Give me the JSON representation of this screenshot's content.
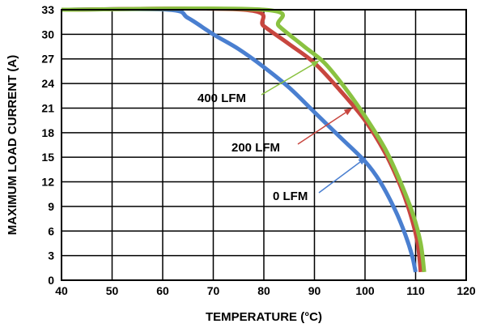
{
  "chart_data": {
    "type": "line",
    "title": "",
    "xlabel": "TEMPERATURE (°C)",
    "ylabel": "MAXIMUM LOAD CURRENT (A)",
    "xlim": [
      40,
      120
    ],
    "ylim": [
      0,
      33
    ],
    "xticks": [
      "40",
      "50",
      "60",
      "70",
      "80",
      "90",
      "100",
      "110",
      "120"
    ],
    "yticks": [
      "0",
      "3",
      "6",
      "9",
      "12",
      "15",
      "18",
      "21",
      "24",
      "27",
      "30",
      "33"
    ],
    "grid": true,
    "series": [
      {
        "name": "0 LFM",
        "color": "#4a7fd0",
        "points": [
          [
            40,
            33
          ],
          [
            61,
            33
          ],
          [
            65,
            32
          ],
          [
            70,
            30
          ],
          [
            75,
            28.2
          ],
          [
            80,
            26
          ],
          [
            85,
            23.5
          ],
          [
            90,
            20.5
          ],
          [
            95,
            17.5
          ],
          [
            100,
            14.5
          ],
          [
            103,
            12
          ],
          [
            106,
            8.5
          ],
          [
            108,
            5.5
          ],
          [
            109.3,
            3
          ],
          [
            110,
            1
          ]
        ]
      },
      {
        "name": "200 LFM",
        "color": "#c8463f",
        "points": [
          [
            40,
            33
          ],
          [
            76,
            33
          ],
          [
            80,
            31
          ],
          [
            85,
            28.8
          ],
          [
            90,
            26.5
          ],
          [
            95,
            23.2
          ],
          [
            100,
            19.5
          ],
          [
            104,
            15.5
          ],
          [
            107,
            11.5
          ],
          [
            109,
            8
          ],
          [
            110.4,
            4.5
          ],
          [
            111,
            1
          ]
        ]
      },
      {
        "name": "400 LFM",
        "color": "#8ac241",
        "points": [
          [
            40,
            33
          ],
          [
            80,
            33
          ],
          [
            83,
            31
          ],
          [
            88,
            28.5
          ],
          [
            92,
            26.5
          ],
          [
            96,
            23.5
          ],
          [
            100,
            20
          ],
          [
            104,
            16
          ],
          [
            107,
            12
          ],
          [
            109.5,
            8
          ],
          [
            111,
            4.5
          ],
          [
            111.7,
            1
          ]
        ]
      }
    ],
    "annotations": [
      {
        "text": "400 LFM",
        "series": "400 LFM",
        "x": 91,
        "y": 26.8
      },
      {
        "text": "200 LFM",
        "series": "200 LFM",
        "x": 97.5,
        "y": 21
      },
      {
        "text": "0 LFM",
        "series": "0 LFM",
        "x": 100.3,
        "y": 15
      }
    ]
  }
}
